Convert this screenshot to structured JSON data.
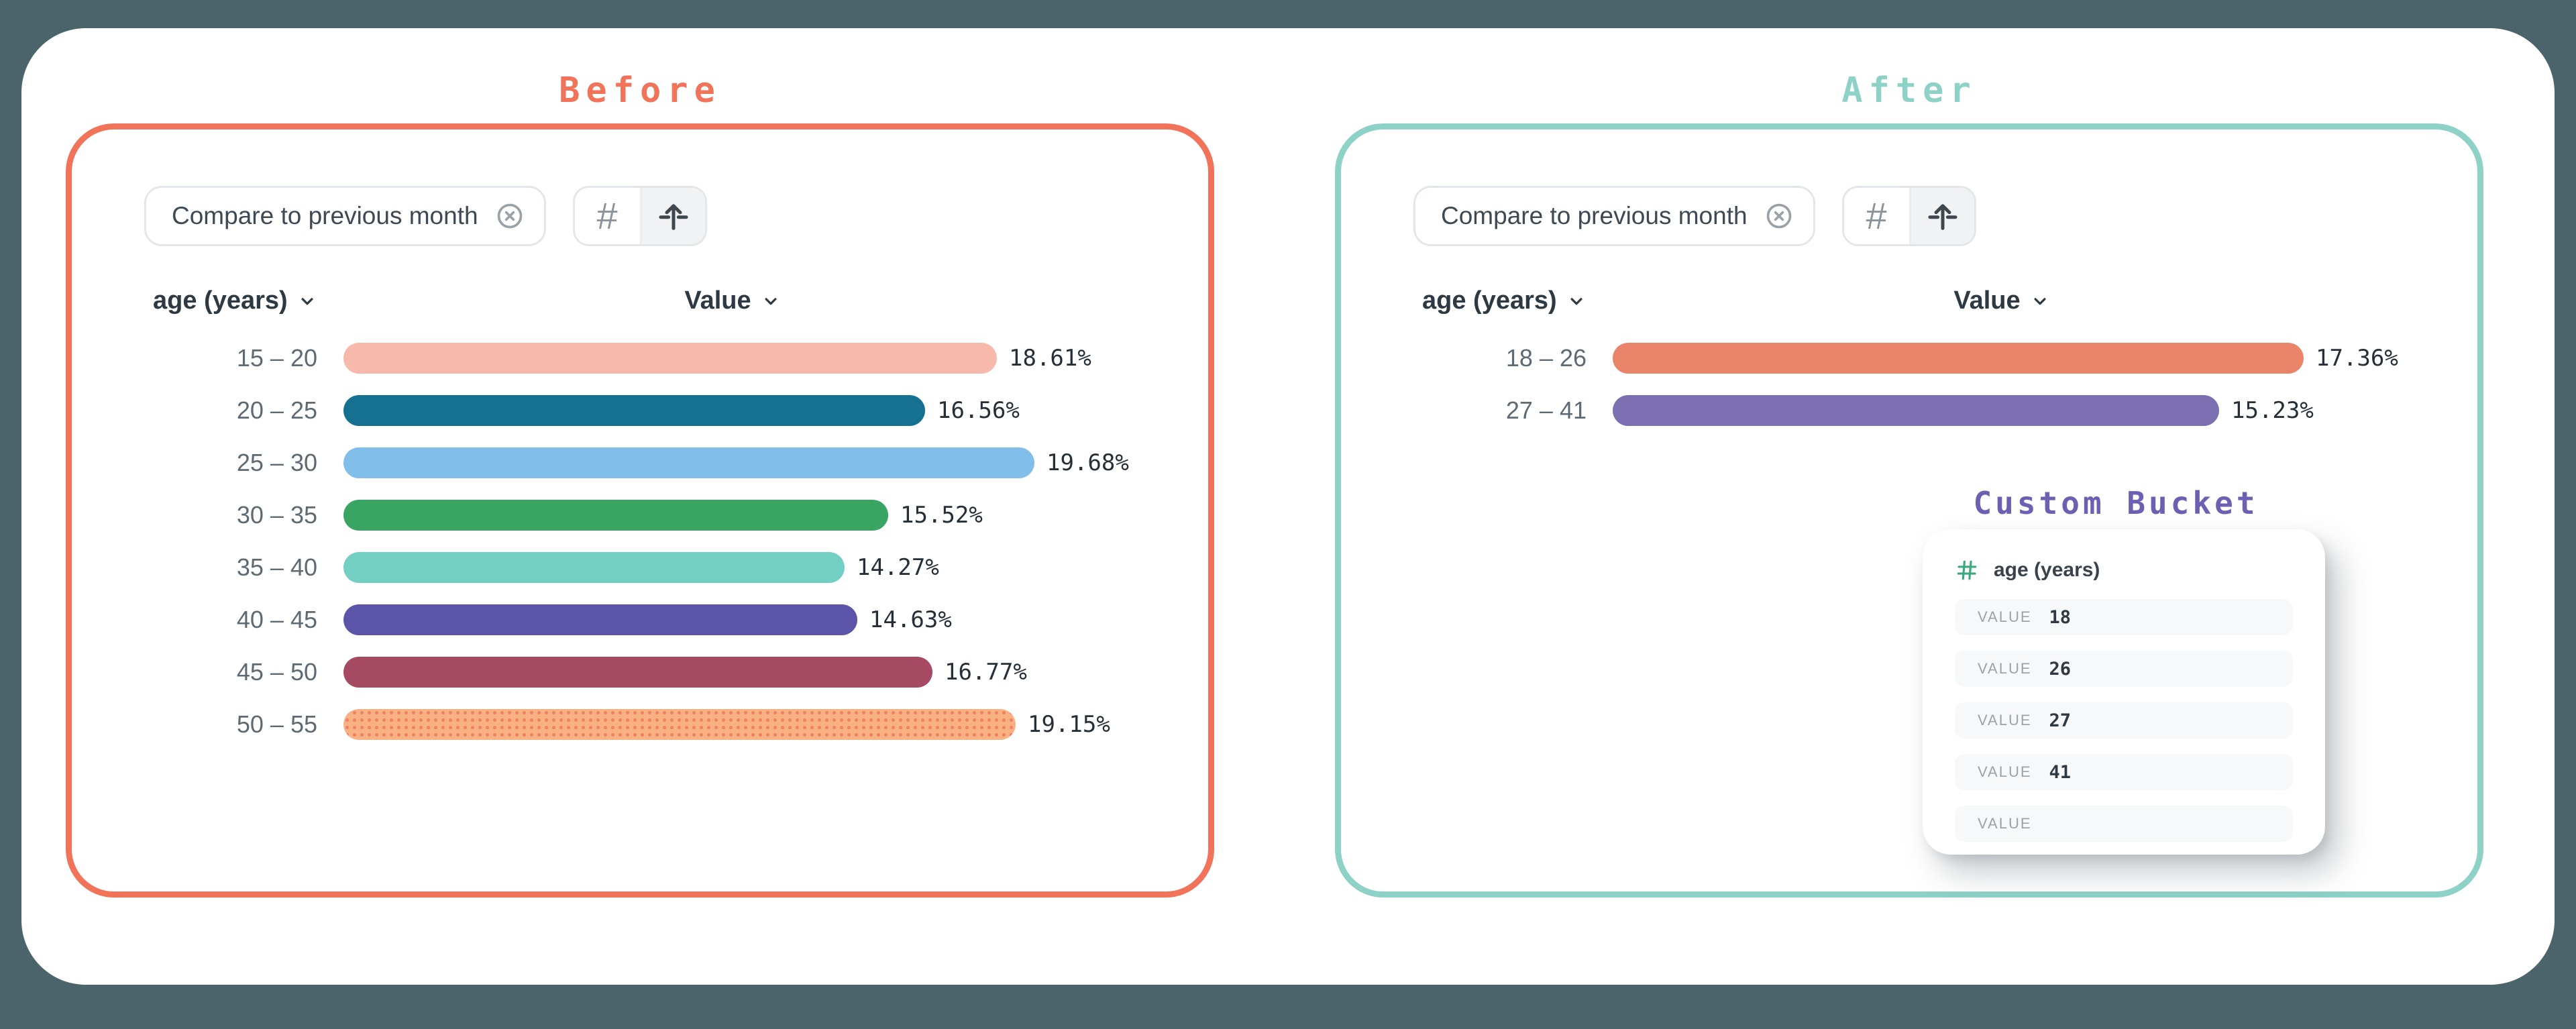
{
  "background_color": "#4b646c",
  "before": {
    "title": "Before",
    "accent_color": "#f0735a",
    "chip": {
      "label": "Compare to previous month"
    },
    "toolbar": {
      "buttons": [
        "number-format",
        "bar-chart"
      ]
    },
    "columns": {
      "dimension": "age (years)",
      "value": "Value"
    }
  },
  "after": {
    "title": "After",
    "accent_color": "#8ed1c6",
    "chip": {
      "label": "Compare to previous month"
    },
    "toolbar": {
      "buttons": [
        "number-format",
        "bar-chart"
      ]
    },
    "columns": {
      "dimension": "age (years)",
      "value": "Value"
    },
    "custom_bucket": {
      "title": "Custom Bucket",
      "accent_color": "#6b60b2",
      "field": "age (years)",
      "field_icon_color": "#3da87d",
      "rows": [
        {
          "label": "VALUE",
          "value": "18"
        },
        {
          "label": "VALUE",
          "value": "26"
        },
        {
          "label": "VALUE",
          "value": "27"
        },
        {
          "label": "VALUE",
          "value": "41"
        },
        {
          "label": "VALUE",
          "value": ""
        }
      ]
    }
  },
  "chart_data": [
    {
      "panel": "Before",
      "type": "bar",
      "orientation": "horizontal",
      "column_headers": [
        "age (years)",
        "Value"
      ],
      "filter": "Compare to previous month",
      "categories": [
        "15 – 20",
        "20 – 25",
        "25 – 30",
        "30 – 35",
        "35 – 40",
        "40 – 45",
        "45 – 50",
        "50 – 55"
      ],
      "values": [
        18.61,
        16.56,
        19.68,
        15.52,
        14.27,
        14.63,
        16.77,
        19.15
      ],
      "value_labels": [
        "18.61%",
        "16.56%",
        "19.68%",
        "15.52%",
        "14.27%",
        "14.63%",
        "16.77%",
        "19.15%"
      ],
      "colors": [
        "#f7b9ac",
        "#16708f",
        "#81bee9",
        "#39a562",
        "#73cfc3",
        "#5b54a8",
        "#a64a63",
        "#f9b183"
      ],
      "patterned": [
        false,
        false,
        false,
        false,
        false,
        false,
        false,
        true
      ],
      "pattern_dot_color": "#ee8363",
      "value_format": "percent"
    },
    {
      "panel": "After",
      "type": "bar",
      "orientation": "horizontal",
      "column_headers": [
        "age (years)",
        "Value"
      ],
      "filter": "Compare to previous month",
      "categories": [
        "18 – 26",
        "27 – 41"
      ],
      "values": [
        17.36,
        15.23
      ],
      "value_labels": [
        "17.36%",
        "15.23%"
      ],
      "colors": [
        "#ea8468",
        "#7b6fb2"
      ],
      "patterned": [
        false,
        false
      ],
      "value_format": "percent"
    }
  ]
}
